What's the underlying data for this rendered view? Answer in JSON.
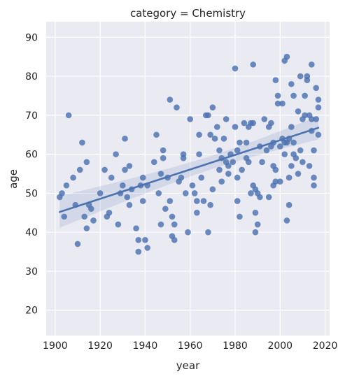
{
  "chart_data": {
    "type": "scatter",
    "title": "category = Chemistry",
    "xlabel": "year",
    "ylabel": "age",
    "xlim": [
      1896,
      2022
    ],
    "ylim": [
      13.5,
      94
    ],
    "xticks": [
      1900,
      1920,
      1940,
      1960,
      1980,
      2000,
      2020
    ],
    "yticks": [
      20,
      30,
      40,
      50,
      60,
      70,
      80,
      90
    ],
    "grid": true,
    "colors": {
      "background": "#eaeaf2",
      "grid": "#ffffff",
      "points": "#4c72b0",
      "fit_line": "#4c72b0",
      "confidence_band": "#4c72b0"
    },
    "points": [
      [
        1902,
        49
      ],
      [
        1903,
        50
      ],
      [
        1904,
        44
      ],
      [
        1905,
        52
      ],
      [
        1906,
        70
      ],
      [
        1908,
        54
      ],
      [
        1909,
        47
      ],
      [
        1910,
        37
      ],
      [
        1911,
        56
      ],
      [
        1912,
        63
      ],
      [
        1913,
        44
      ],
      [
        1914,
        58
      ],
      [
        1914,
        41
      ],
      [
        1915,
        47
      ],
      [
        1916,
        46
      ],
      [
        1917,
        43
      ],
      [
        1920,
        50
      ],
      [
        1922,
        56
      ],
      [
        1923,
        44
      ],
      [
        1924,
        45
      ],
      [
        1925,
        54
      ],
      [
        1927,
        60
      ],
      [
        1928,
        42
      ],
      [
        1929,
        50
      ],
      [
        1930,
        52
      ],
      [
        1931,
        64
      ],
      [
        1931,
        56
      ],
      [
        1932,
        49
      ],
      [
        1933,
        57
      ],
      [
        1933,
        47
      ],
      [
        1934,
        51
      ],
      [
        1936,
        41
      ],
      [
        1937,
        38
      ],
      [
        1937,
        35
      ],
      [
        1938,
        52
      ],
      [
        1939,
        54
      ],
      [
        1939,
        48
      ],
      [
        1940,
        38
      ],
      [
        1941,
        36
      ],
      [
        1941,
        52
      ],
      [
        1944,
        58
      ],
      [
        1945,
        65
      ],
      [
        1946,
        50
      ],
      [
        1947,
        42
      ],
      [
        1947,
        55
      ],
      [
        1948,
        59
      ],
      [
        1948,
        61
      ],
      [
        1949,
        46
      ],
      [
        1950,
        54
      ],
      [
        1951,
        48
      ],
      [
        1951,
        74
      ],
      [
        1952,
        44
      ],
      [
        1952,
        39
      ],
      [
        1953,
        42
      ],
      [
        1953,
        38
      ],
      [
        1954,
        72
      ],
      [
        1955,
        53
      ],
      [
        1956,
        54
      ],
      [
        1957,
        59
      ],
      [
        1957,
        60
      ],
      [
        1958,
        50
      ],
      [
        1959,
        40
      ],
      [
        1960,
        69
      ],
      [
        1961,
        52
      ],
      [
        1962,
        50
      ],
      [
        1963,
        45
      ],
      [
        1963,
        48
      ],
      [
        1964,
        60
      ],
      [
        1964,
        65
      ],
      [
        1965,
        54
      ],
      [
        1966,
        48
      ],
      [
        1967,
        70
      ],
      [
        1968,
        70
      ],
      [
        1968,
        40
      ],
      [
        1969,
        47
      ],
      [
        1969,
        65
      ],
      [
        1970,
        72
      ],
      [
        1970,
        51
      ],
      [
        1971,
        64
      ],
      [
        1972,
        67
      ],
      [
        1973,
        61
      ],
      [
        1973,
        56
      ],
      [
        1974,
        53
      ],
      [
        1974,
        59
      ],
      [
        1975,
        64
      ],
      [
        1976,
        58
      ],
      [
        1976,
        69
      ],
      [
        1977,
        57
      ],
      [
        1977,
        55
      ],
      [
        1978,
        60
      ],
      [
        1979,
        58
      ],
      [
        1980,
        82
      ],
      [
        1980,
        67
      ],
      [
        1981,
        54
      ],
      [
        1981,
        48
      ],
      [
        1981,
        61
      ],
      [
        1982,
        44
      ],
      [
        1982,
        63
      ],
      [
        1983,
        56
      ],
      [
        1984,
        68
      ],
      [
        1985,
        63
      ],
      [
        1985,
        59
      ],
      [
        1986,
        58
      ],
      [
        1986,
        67
      ],
      [
        1987,
        68
      ],
      [
        1987,
        50
      ],
      [
        1988,
        52
      ],
      [
        1988,
        68
      ],
      [
        1988,
        83
      ],
      [
        1989,
        45
      ],
      [
        1989,
        40
      ],
      [
        1989,
        51
      ],
      [
        1990,
        42
      ],
      [
        1990,
        50
      ],
      [
        1991,
        62
      ],
      [
        1991,
        49
      ],
      [
        1992,
        58
      ],
      [
        1993,
        69
      ],
      [
        1994,
        61
      ],
      [
        1995,
        49
      ],
      [
        1995,
        67
      ],
      [
        1996,
        62
      ],
      [
        1996,
        68
      ],
      [
        1997,
        52
      ],
      [
        1997,
        63
      ],
      [
        1997,
        57
      ],
      [
        1998,
        79
      ],
      [
        1998,
        56
      ],
      [
        1998,
        53
      ],
      [
        1999,
        75
      ],
      [
        1999,
        73
      ],
      [
        2000,
        62
      ],
      [
        2000,
        53
      ],
      [
        2001,
        73
      ],
      [
        2001,
        64
      ],
      [
        2002,
        63
      ],
      [
        2002,
        60
      ],
      [
        2002,
        84
      ],
      [
        2003,
        43
      ],
      [
        2003,
        63
      ],
      [
        2003,
        85
      ],
      [
        2004,
        47
      ],
      [
        2004,
        54
      ],
      [
        2004,
        64
      ],
      [
        2005,
        67
      ],
      [
        2005,
        78
      ],
      [
        2005,
        57
      ],
      [
        2006,
        63
      ],
      [
        2006,
        60
      ],
      [
        2006,
        75
      ],
      [
        2007,
        59
      ],
      [
        2008,
        55
      ],
      [
        2008,
        71
      ],
      [
        2009,
        61
      ],
      [
        2009,
        80
      ],
      [
        2010,
        58
      ],
      [
        2010,
        69
      ],
      [
        2011,
        70
      ],
      [
        2011,
        75
      ],
      [
        2012,
        80
      ],
      [
        2012,
        79
      ],
      [
        2013,
        70
      ],
      [
        2013,
        57
      ],
      [
        2014,
        83
      ],
      [
        2014,
        69
      ],
      [
        2014,
        66
      ],
      [
        2015,
        61
      ],
      [
        2015,
        54
      ],
      [
        2015,
        52
      ],
      [
        2016,
        77
      ],
      [
        2016,
        69
      ],
      [
        2017,
        72
      ],
      [
        2017,
        65
      ],
      [
        2017,
        74
      ]
    ],
    "regression": {
      "x": [
        1902,
        2017
      ],
      "y": [
        45.2,
        66.8
      ]
    }
  }
}
